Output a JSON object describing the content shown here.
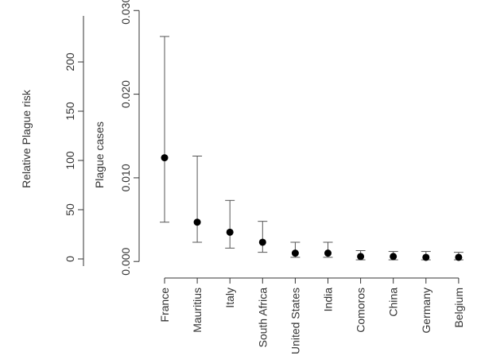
{
  "chart_data": {
    "type": "scatter",
    "categories": [
      "France",
      "Mauritius",
      "Italy",
      "South Africa",
      "United States",
      "India",
      "Comoros",
      "China",
      "Germany",
      "Belgium"
    ],
    "series": [
      {
        "values": [
          0.0124,
          0.0047,
          0.0035,
          0.0023,
          0.001,
          0.001,
          0.0006,
          0.0006,
          0.0005,
          0.0005
        ],
        "lower": [
          0.0047,
          0.0023,
          0.0016,
          0.0011,
          0.0005,
          0.0005,
          0.0002,
          0.0002,
          0.0002,
          0.0002
        ],
        "upper": [
          0.0269,
          0.0126,
          0.0073,
          0.0048,
          0.0023,
          0.0023,
          0.0013,
          0.0012,
          0.0012,
          0.0011
        ]
      }
    ],
    "ylabel": "Plague cases",
    "ylim": [
      -0.0015,
      0.0305
    ],
    "yticks": [
      "0.000",
      "0.010",
      "0.020",
      "0.030"
    ],
    "ylabel2": "Relative Plague risk",
    "y2ticks": [
      "0",
      "50",
      "100",
      "150",
      "200"
    ],
    "y2range": [
      0,
      200
    ]
  }
}
